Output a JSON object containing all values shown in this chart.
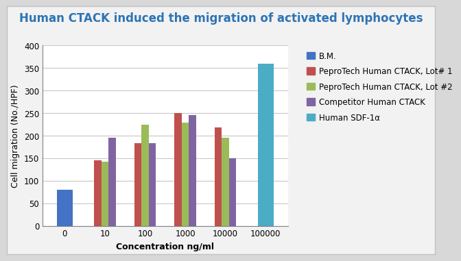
{
  "title": "Human CTACK induced the migration of activated lymphocytes",
  "title_color": "#2e74b5",
  "xlabel": "Concentration ng/ml",
  "ylabel": "Cell migration (No./HPF)",
  "ylim": [
    0,
    400
  ],
  "yticks": [
    0,
    50,
    100,
    150,
    200,
    250,
    300,
    350,
    400
  ],
  "x_labels": [
    "0",
    "10",
    "100",
    "1000",
    "10000",
    "100000"
  ],
  "bar_width": 0.18,
  "series": [
    {
      "name": "B.M.",
      "color": "#4472c4",
      "values": [
        80,
        null,
        null,
        null,
        null,
        null
      ]
    },
    {
      "name": "PeproTech Human CTACK, Lot# 1",
      "color": "#c0504d",
      "values": [
        null,
        145,
        183,
        250,
        218,
        null
      ]
    },
    {
      "name": "PeproTech Human CTACK, Lot #2",
      "color": "#9bbb59",
      "values": [
        null,
        142,
        224,
        228,
        195,
        null
      ]
    },
    {
      "name": "Competitor Human CTACK",
      "color": "#8064a2",
      "values": [
        null,
        195,
        183,
        245,
        150,
        null
      ]
    },
    {
      "name": "Human SDF-1α",
      "color": "#4bacc6",
      "values": [
        null,
        null,
        null,
        null,
        null,
        358
      ]
    }
  ],
  "background_color": "#f5f5f5",
  "plot_bg_color": "#ffffff",
  "outer_bg_color": "#f0f0f0",
  "grid_color": "#c8c8c8",
  "title_fontsize": 12,
  "axis_label_fontsize": 9,
  "tick_fontsize": 8.5,
  "legend_fontsize": 8.5,
  "figure_bg": "#e8e8e8"
}
